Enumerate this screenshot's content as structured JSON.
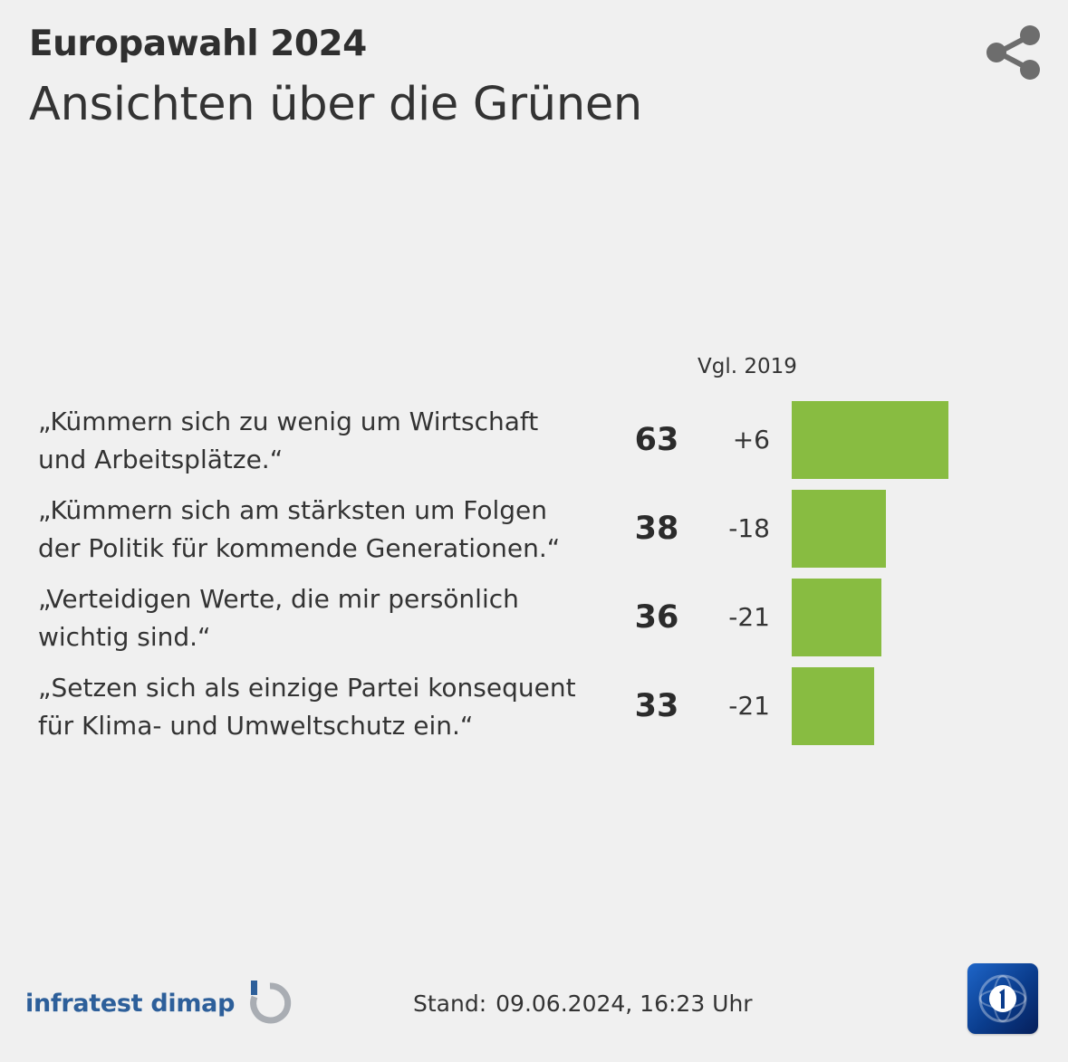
{
  "header": {
    "kicker": "Europawahl 2024",
    "headline": "Ansichten über die Grünen"
  },
  "icons": {
    "share": "share-icon",
    "infratest_logo": "infratest-dimap-logo-icon",
    "broadcaster_logo": "ard-logo-icon"
  },
  "chart_data": {
    "type": "bar",
    "orientation": "horizontal",
    "column_header": "Vgl. 2019",
    "categories": [
      "„Kümmern sich zu wenig um Wirtschaft und Arbeitsplätze.“",
      "„Kümmern sich am stärksten um Folgen der Politik für kommende Generationen.“",
      "„Verteidigen Werte, die mir persönlich wichtig sind.“",
      "„Setzen sich als einzige Partei konsequent für Klima- und Umweltschutz ein.“"
    ],
    "values": [
      63,
      38,
      36,
      33
    ],
    "changes": [
      "+6",
      "-18",
      "-21",
      "-21"
    ],
    "bar_color": "#88bc41",
    "xlim": [
      0,
      63
    ],
    "grid": false
  },
  "rows": [
    {
      "line1": "„Kümmern sich zu wenig um Wirtschaft",
      "line2": "und Arbeitsplätze.“",
      "value": "63",
      "change": "+6"
    },
    {
      "line1": "„Kümmern sich am stärksten um Folgen",
      "line2": "der Politik für kommende Generationen.“",
      "value": "38",
      "change": "-18"
    },
    {
      "line1": "„Verteidigen Werte, die mir persönlich",
      "line2": "wichtig sind.“",
      "value": "36",
      "change": "-21"
    },
    {
      "line1": "„Setzen sich als einzige Partei konsequent",
      "line2": "für Klima- und Umweltschutz ein.“",
      "value": "33",
      "change": "-21"
    }
  ],
  "footer": {
    "source": "infratest dimap",
    "stand_label": "Stand:",
    "stand_date": "09.06.2024, 16:23 Uhr"
  },
  "colors": {
    "background": "#f0f0f0",
    "bar": "#88bc41",
    "brand_blue": "#2d5f9a"
  }
}
